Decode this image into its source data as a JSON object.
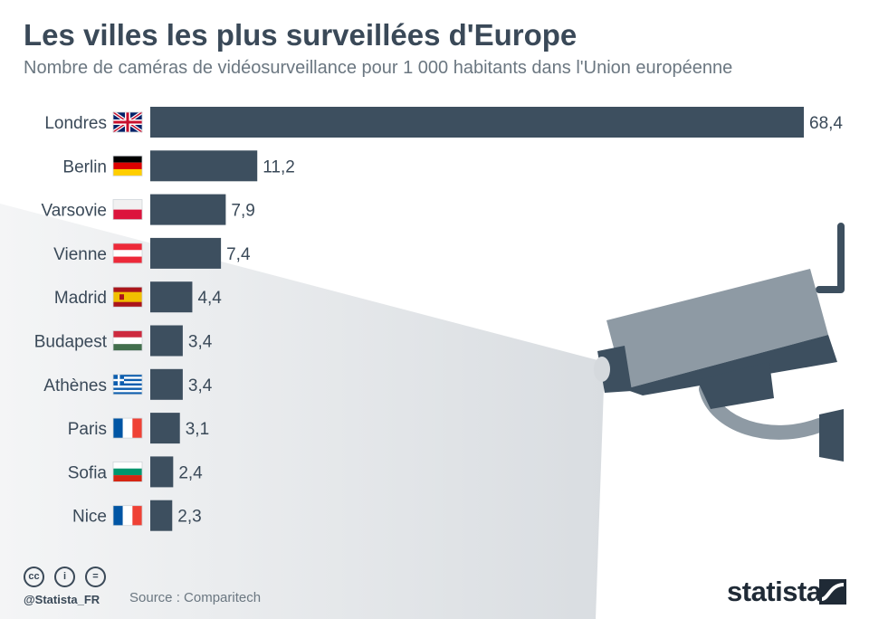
{
  "title": "Les villes les plus surveillées d'Europe",
  "subtitle": "Nombre de caméras de vidéosurveillance pour 1 000 habitants dans l'Union européenne",
  "chart_data": {
    "type": "bar",
    "orientation": "horizontal",
    "categories": [
      "Londres",
      "Berlin",
      "Varsovie",
      "Vienne",
      "Madrid",
      "Budapest",
      "Athènes",
      "Paris",
      "Sofia",
      "Nice"
    ],
    "values": [
      68.4,
      11.2,
      7.9,
      7.4,
      4.4,
      3.4,
      3.4,
      3.1,
      2.4,
      2.3
    ],
    "value_labels": [
      "68,4",
      "11,2",
      "7,9",
      "7,4",
      "4,4",
      "3,4",
      "3,4",
      "3,1",
      "2,4",
      "2,3"
    ],
    "flags": [
      "uk-flag",
      "germany-flag",
      "poland-flag",
      "austria-flag",
      "spain-flag",
      "hungary-flag",
      "greece-flag",
      "france-flag",
      "bulgaria-flag",
      "france-flag"
    ],
    "xlim": [
      0,
      68.4
    ],
    "bar_color": "#3d4f5f"
  },
  "footer": {
    "license_icons": [
      "cc-icon",
      "attribution-icon",
      "no-derivatives-icon"
    ],
    "handle": "@Statista_FR",
    "source": "Source : Comparitech",
    "brand": "statista"
  },
  "colors": {
    "title": "#3a4958",
    "subtitle": "#6b7781",
    "camera": "#8e9aa4",
    "camera_dark": "#3d4f5f",
    "beam": "#e5e8eb"
  }
}
